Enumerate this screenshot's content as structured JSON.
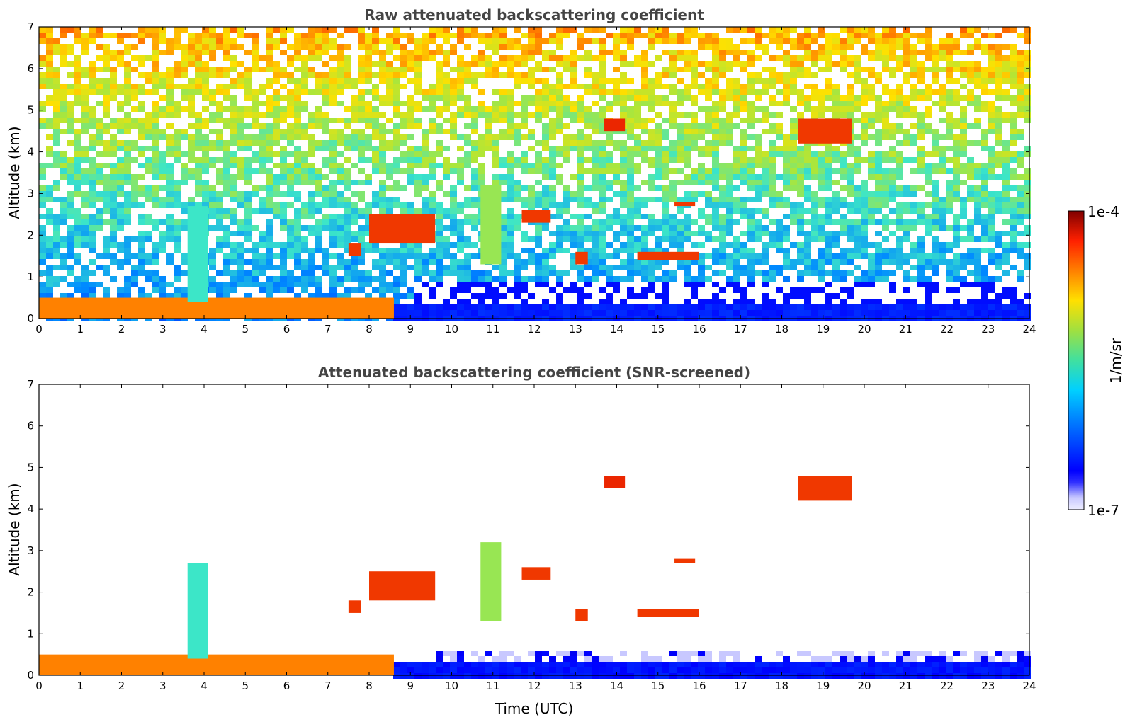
{
  "chart_data": [
    {
      "type": "heatmap",
      "title": "Raw attenuated backscattering coefficient",
      "xlabel": "",
      "ylabel": "Altitude (km)",
      "xlim": [
        0,
        24
      ],
      "ylim": [
        0,
        7
      ],
      "xticks": [
        0,
        1,
        2,
        3,
        4,
        5,
        6,
        7,
        8,
        9,
        10,
        11,
        12,
        13,
        14,
        15,
        16,
        17,
        18,
        19,
        20,
        21,
        22,
        23,
        24
      ],
      "yticks": [
        0,
        1,
        2,
        3,
        4,
        5,
        6,
        7
      ],
      "screened": false,
      "features": [
        {
          "kind": "boundary-layer",
          "x": [
            0,
            8.6
          ],
          "y": [
            0,
            0.5
          ],
          "level": 0.82
        },
        {
          "kind": "aerosol-column",
          "x": [
            3.6,
            4.1
          ],
          "y": [
            0.4,
            2.7
          ],
          "level": 0.5
        },
        {
          "kind": "cloud",
          "x": [
            7.5,
            7.8
          ],
          "y": [
            1.5,
            1.8
          ],
          "level": 0.9
        },
        {
          "kind": "cloud",
          "x": [
            8.0,
            9.6
          ],
          "y": [
            1.8,
            2.5
          ],
          "level": 0.9
        },
        {
          "kind": "aerosol-column",
          "x": [
            10.7,
            11.2
          ],
          "y": [
            1.3,
            3.2
          ],
          "level": 0.6
        },
        {
          "kind": "cloud",
          "x": [
            11.7,
            12.4
          ],
          "y": [
            2.3,
            2.6
          ],
          "level": 0.9
        },
        {
          "kind": "cloud",
          "x": [
            13.7,
            14.2
          ],
          "y": [
            4.5,
            4.8
          ],
          "level": 0.92
        },
        {
          "kind": "cloud",
          "x": [
            15.4,
            15.9
          ],
          "y": [
            2.7,
            2.8
          ],
          "level": 0.9
        },
        {
          "kind": "cloud",
          "x": [
            18.4,
            19.7
          ],
          "y": [
            4.2,
            4.8
          ],
          "level": 0.9
        },
        {
          "kind": "cloud",
          "x": [
            14.5,
            16.0
          ],
          "y": [
            1.4,
            1.6
          ],
          "level": 0.9
        },
        {
          "kind": "cloud",
          "x": [
            13.0,
            13.3
          ],
          "y": [
            1.3,
            1.6
          ],
          "level": 0.9
        }
      ]
    },
    {
      "type": "heatmap",
      "title": "Attenuated backscattering coefficient (SNR-screened)",
      "xlabel": "Time (UTC)",
      "ylabel": "Altitude (km)",
      "xlim": [
        0,
        24
      ],
      "ylim": [
        0,
        7
      ],
      "xticks": [
        0,
        1,
        2,
        3,
        4,
        5,
        6,
        7,
        8,
        9,
        10,
        11,
        12,
        13,
        14,
        15,
        16,
        17,
        18,
        19,
        20,
        21,
        22,
        23,
        24
      ],
      "yticks": [
        0,
        1,
        2,
        3,
        4,
        5,
        6,
        7
      ],
      "screened": true,
      "features": [
        {
          "kind": "boundary-layer",
          "x": [
            0,
            8.6
          ],
          "y": [
            0,
            0.5
          ],
          "level": 0.82
        },
        {
          "kind": "aerosol-column",
          "x": [
            3.6,
            4.1
          ],
          "y": [
            0.4,
            2.7
          ],
          "level": 0.5
        },
        {
          "kind": "cloud",
          "x": [
            7.5,
            7.8
          ],
          "y": [
            1.5,
            1.8
          ],
          "level": 0.9
        },
        {
          "kind": "cloud",
          "x": [
            8.0,
            9.6
          ],
          "y": [
            1.8,
            2.5
          ],
          "level": 0.9
        },
        {
          "kind": "aerosol-column",
          "x": [
            10.7,
            11.2
          ],
          "y": [
            1.3,
            3.2
          ],
          "level": 0.6
        },
        {
          "kind": "cloud",
          "x": [
            11.7,
            12.4
          ],
          "y": [
            2.3,
            2.6
          ],
          "level": 0.9
        },
        {
          "kind": "cloud",
          "x": [
            13.7,
            14.2
          ],
          "y": [
            4.5,
            4.8
          ],
          "level": 0.92
        },
        {
          "kind": "cloud",
          "x": [
            15.4,
            15.9
          ],
          "y": [
            2.7,
            2.8
          ],
          "level": 0.9
        },
        {
          "kind": "cloud",
          "x": [
            18.4,
            19.7
          ],
          "y": [
            4.2,
            4.8
          ],
          "level": 0.9
        },
        {
          "kind": "cloud",
          "x": [
            14.5,
            16.0
          ],
          "y": [
            1.4,
            1.6
          ],
          "level": 0.9
        },
        {
          "kind": "cloud",
          "x": [
            13.0,
            13.3
          ],
          "y": [
            1.3,
            1.6
          ],
          "level": 0.9
        }
      ]
    }
  ],
  "colorbar": {
    "label": "1/m/sr",
    "max_label": "1e-4",
    "min_label": "1e-7",
    "colormap": "jet",
    "scale": "log"
  }
}
